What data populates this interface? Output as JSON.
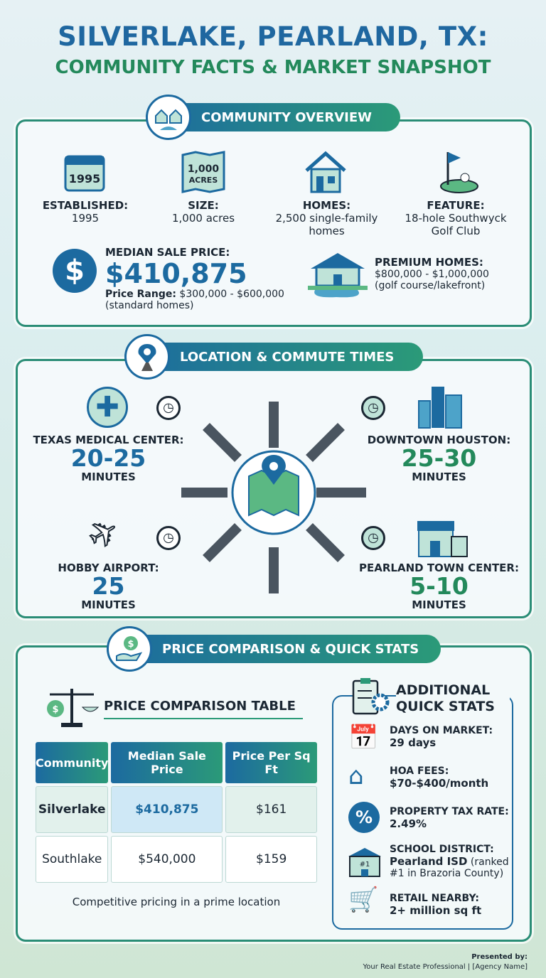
{
  "header": {
    "line1": "SILVERLAKE, PEARLAND, TX:",
    "line2": "COMMUNITY FACTS & MARKET SNAPSHOT"
  },
  "overview": {
    "title": "COMMUNITY OVERVIEW",
    "facts": [
      {
        "icon": "calendar-icon",
        "icon_text": "1995",
        "label": "ESTABLISHED:",
        "value": "1995"
      },
      {
        "icon": "map-icon",
        "icon_text": "1,000 ACRES",
        "label": "SIZE:",
        "value": "1,000 acres"
      },
      {
        "icon": "house-icon",
        "label": "HOMES:",
        "value": "2,500 single-family homes"
      },
      {
        "icon": "golf-flag-icon",
        "label": "FEATURE:",
        "value": "18-hole Southwyck Golf Club"
      }
    ],
    "median_label": "MEDIAN SALE PRICE:",
    "median_value": "$410,875",
    "range_label": "Price Range:",
    "range_value": "$300,000 - $600,000",
    "range_note": "(standard homes)",
    "premium_label": "PREMIUM HOMES:",
    "premium_value": "$800,000 - $1,000,000",
    "premium_note": "(golf course/lakefront)"
  },
  "commute": {
    "title": "LOCATION & COMMUTE TIMES",
    "unit": "MINUTES",
    "items": [
      {
        "name": "TEXAS MEDICAL CENTER:",
        "time": "20-25",
        "icon": "medical-cross-icon"
      },
      {
        "name": "DOWNTOWN HOUSTON:",
        "time": "25-30",
        "icon": "city-skyline-icon"
      },
      {
        "name": "HOBBY AIRPORT:",
        "time": "25",
        "icon": "airplane-icon"
      },
      {
        "name": "PEARLAND TOWN CENTER:",
        "time": "5-10",
        "icon": "shop-icon"
      }
    ]
  },
  "prices": {
    "title": "PRICE COMPARISON & QUICK STATS",
    "table_title": "PRICE COMPARISON TABLE",
    "columns": [
      "Community",
      "Median Sale Price",
      "Price Per Sq Ft"
    ],
    "rows": [
      [
        "Silverlake",
        "$410,875",
        "$161"
      ],
      [
        "Southlake",
        "$540,000",
        "$159"
      ]
    ],
    "caption": "Competitive pricing in a prime location",
    "stats_title": "ADDITIONAL QUICK STATS",
    "stats": [
      {
        "icon": "calendar-check-icon",
        "label": "DAYS ON MARKET:",
        "value": "29 days"
      },
      {
        "icon": "house-dollar-icon",
        "label": "HOA FEES:",
        "value": "$70-$400/month"
      },
      {
        "icon": "percent-badge-icon",
        "label": "PROPERTY TAX RATE:",
        "value": "2.49%"
      },
      {
        "icon": "school-icon",
        "label": "SCHOOL DISTRICT:",
        "value": "Pearland ISD",
        "note": "(ranked #1 in Brazoria County)"
      },
      {
        "icon": "shopping-cart-icon",
        "label": "RETAIL NEARBY:",
        "value": "2+ million sq ft"
      }
    ]
  },
  "footer": {
    "line1": "Presented by:",
    "line2": "Your Real Estate Professional | [Agency Name]"
  },
  "colors": {
    "blue": "#1c6aa0",
    "green": "#23895b",
    "text": "#1b2733"
  }
}
